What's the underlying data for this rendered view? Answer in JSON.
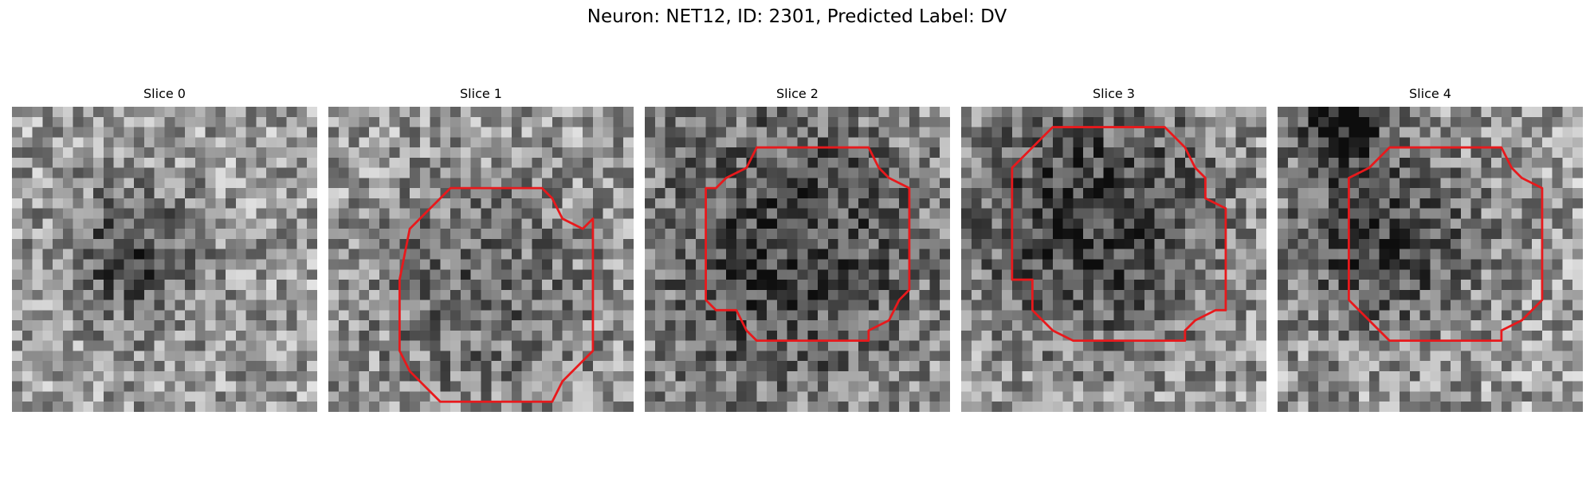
{
  "figure": {
    "title": "Neuron: NET12, ID: 2301, Predicted Label: DV",
    "contour_color": "#e8191c",
    "image_grid": 30,
    "colormap": "gray"
  },
  "slices": [
    {
      "title": "Slice 0",
      "seed": 11,
      "dark": [
        {
          "cx": 12,
          "cy": 15,
          "r": 5,
          "s": 0.18
        }
      ],
      "contour": null
    },
    {
      "title": "Slice 1",
      "seed": 23,
      "dark": [
        {
          "cx": 15,
          "cy": 18,
          "r": 8,
          "s": 0.12
        }
      ],
      "contour": [
        [
          12,
          8
        ],
        [
          10,
          10
        ],
        [
          8,
          12
        ],
        [
          7,
          17
        ],
        [
          7,
          24
        ],
        [
          8,
          26
        ],
        [
          10,
          28
        ],
        [
          11,
          29
        ],
        [
          22,
          29
        ],
        [
          23,
          27
        ],
        [
          25,
          25
        ],
        [
          26,
          24
        ],
        [
          26,
          11
        ],
        [
          25,
          12
        ],
        [
          23,
          11
        ],
        [
          22,
          9
        ],
        [
          21,
          8
        ]
      ]
    },
    {
      "title": "Slice 2",
      "seed": 37,
      "dark": [
        {
          "cx": 14,
          "cy": 14,
          "r": 11,
          "s": 0.2
        }
      ],
      "contour": [
        [
          11,
          4
        ],
        [
          10,
          6
        ],
        [
          8,
          7
        ],
        [
          7,
          8
        ],
        [
          6,
          8
        ],
        [
          6,
          19
        ],
        [
          7,
          20
        ],
        [
          9,
          20
        ],
        [
          10,
          22
        ],
        [
          11,
          23
        ],
        [
          22,
          23
        ],
        [
          22,
          22
        ],
        [
          24,
          21
        ],
        [
          25,
          19
        ],
        [
          26,
          18
        ],
        [
          26,
          8
        ],
        [
          24,
          7
        ],
        [
          23,
          6
        ],
        [
          22,
          4
        ]
      ]
    },
    {
      "title": "Slice 3",
      "seed": 51,
      "dark": [
        {
          "cx": 13,
          "cy": 11,
          "r": 9,
          "s": 0.22
        }
      ],
      "contour": [
        [
          9,
          2
        ],
        [
          8,
          3
        ],
        [
          7,
          4
        ],
        [
          6,
          5
        ],
        [
          5,
          6
        ],
        [
          5,
          17
        ],
        [
          7,
          17
        ],
        [
          7,
          20
        ],
        [
          8,
          21
        ],
        [
          9,
          22
        ],
        [
          11,
          23
        ],
        [
          22,
          23
        ],
        [
          22,
          22
        ],
        [
          23,
          21
        ],
        [
          25,
          20
        ],
        [
          26,
          20
        ],
        [
          26,
          10
        ],
        [
          24,
          9
        ],
        [
          24,
          7
        ],
        [
          23,
          6
        ],
        [
          22,
          4
        ],
        [
          21,
          3
        ],
        [
          20,
          2
        ]
      ]
    },
    {
      "title": "Slice 4",
      "seed": 67,
      "dark": [
        {
          "cx": 10,
          "cy": 13,
          "r": 7,
          "s": 0.2
        },
        {
          "cx": 6,
          "cy": 2,
          "r": 3,
          "s": 0.25
        }
      ],
      "contour": [
        [
          11,
          4
        ],
        [
          10,
          5
        ],
        [
          9,
          6
        ],
        [
          7,
          7
        ],
        [
          7,
          8
        ],
        [
          7,
          19
        ],
        [
          8,
          20
        ],
        [
          9,
          21
        ],
        [
          11,
          23
        ],
        [
          22,
          23
        ],
        [
          22,
          22
        ],
        [
          24,
          21
        ],
        [
          25,
          20
        ],
        [
          26,
          19
        ],
        [
          26,
          8
        ],
        [
          24,
          7
        ],
        [
          23,
          6
        ],
        [
          22,
          4
        ]
      ]
    }
  ]
}
